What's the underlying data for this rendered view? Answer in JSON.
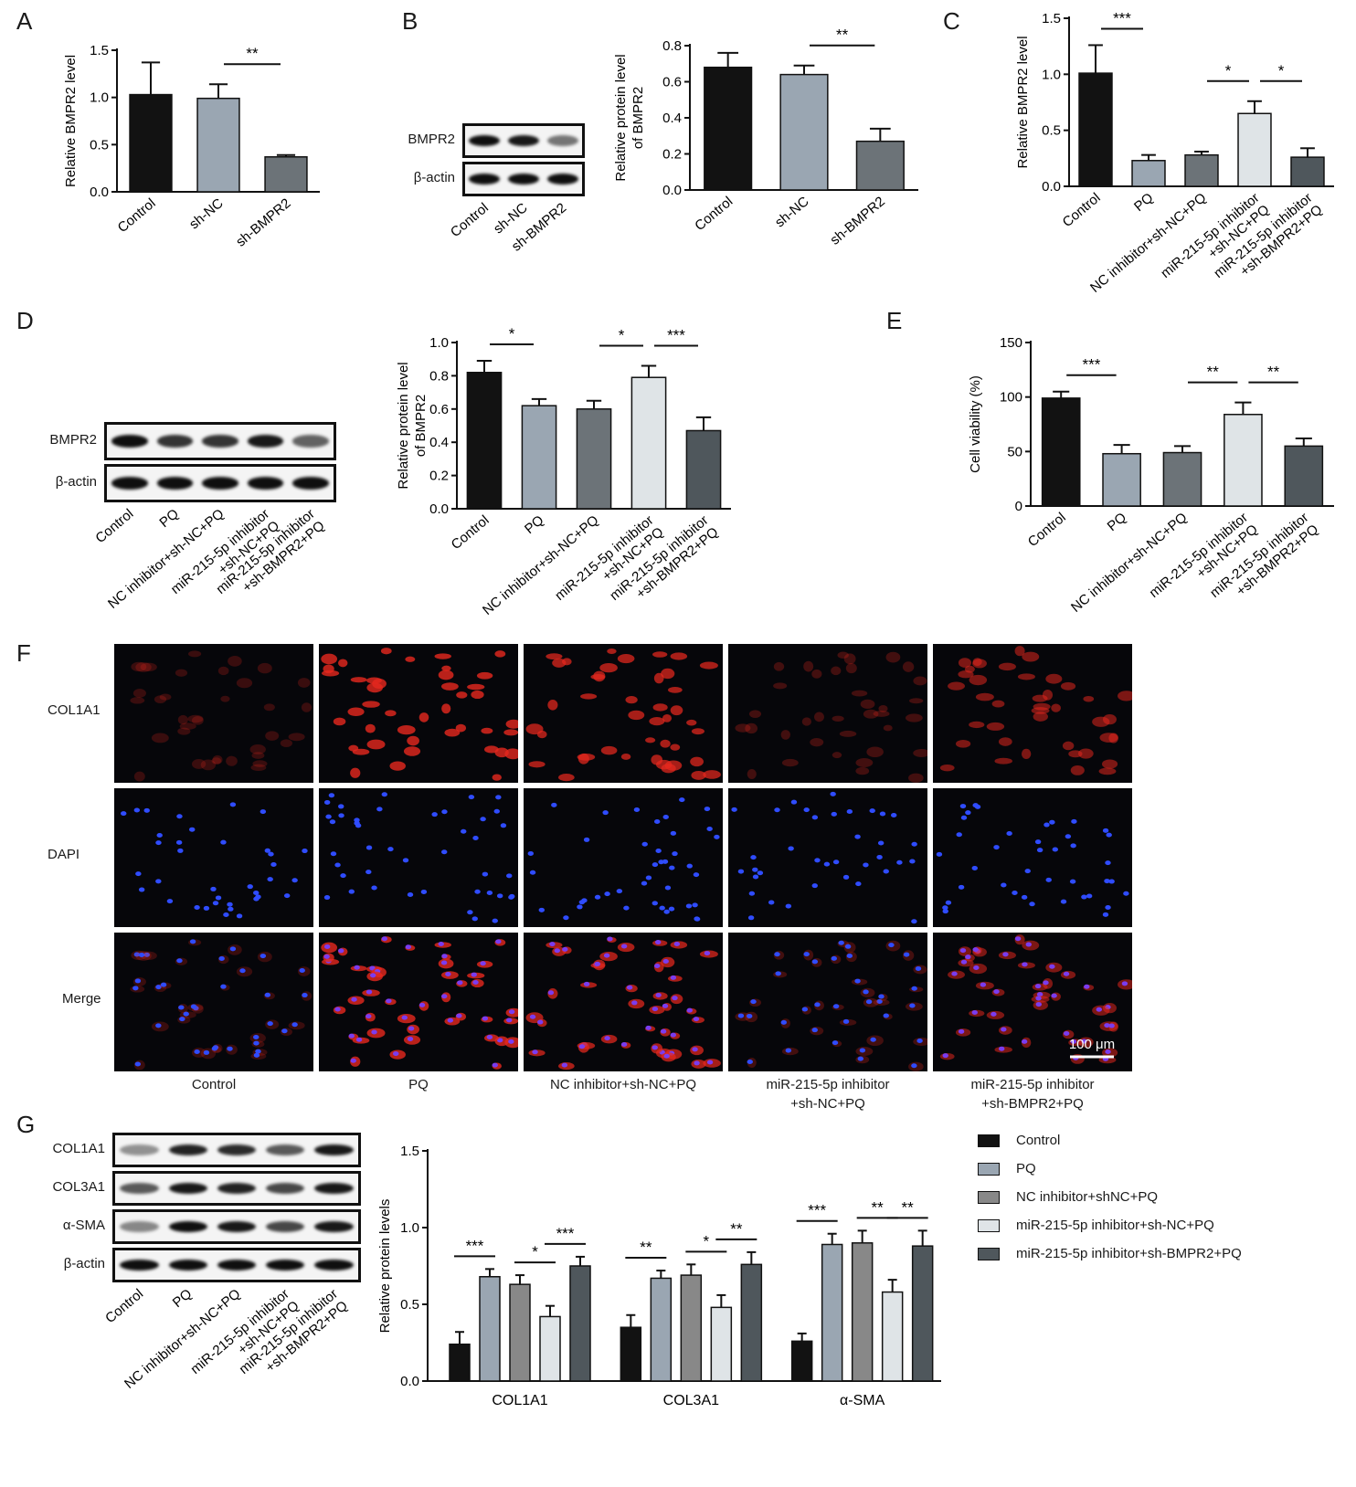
{
  "panels": {
    "A": "A",
    "B": "B",
    "C": "C",
    "D": "D",
    "E": "E",
    "F": "F",
    "G": "G"
  },
  "colors": {
    "Control": "#121212",
    "sh-NC": "#9aa6b2",
    "sh-BMPR2": "#6c7378",
    "PQ": "#9aa6b2",
    "NC inhibitor+sh-NC+PQ": "#6c7378",
    "miR-215-5p inhibitor+sh-NC+PQ": "#dfe4e7",
    "miR-215-5p inhibitor+sh-BMPR2+PQ": "#4f575c",
    "axis": "#111111"
  },
  "chart_data": [
    {
      "id": "A",
      "type": "bar",
      "ylabel": "Relative BMPR2 level",
      "categories": [
        "Control",
        "sh-NC",
        "sh-BMPR2"
      ],
      "values": [
        1.03,
        0.99,
        0.37
      ],
      "errors": [
        0.34,
        0.15,
        0.02
      ],
      "ylim": [
        0,
        1.5
      ],
      "yticks": [
        "0.0",
        "0.5",
        "1.0",
        "1.5"
      ],
      "significance": [
        {
          "from": 1,
          "to": 2,
          "label": "**"
        }
      ]
    },
    {
      "id": "B",
      "type": "bar",
      "ylabel": "Relative protein level of BMPR2",
      "categories": [
        "Control",
        "sh-NC",
        "sh-BMPR2"
      ],
      "values": [
        0.68,
        0.64,
        0.27
      ],
      "errors": [
        0.08,
        0.05,
        0.07
      ],
      "ylim": [
        0,
        0.8
      ],
      "yticks": [
        "0.0",
        "0.2",
        "0.4",
        "0.6",
        "0.8"
      ],
      "significance": [
        {
          "from": 1,
          "to": 2,
          "label": "**"
        }
      ]
    },
    {
      "id": "C",
      "type": "bar",
      "ylabel": "Relative BMPR2 level",
      "categories": [
        "Control",
        "PQ",
        "NC inhibitor+sh-NC+PQ",
        "miR-215-5p inhibitor +sh-NC+PQ",
        "miR-215-5p inhibitor +sh-BMPR2+PQ"
      ],
      "values": [
        1.01,
        0.23,
        0.28,
        0.65,
        0.26
      ],
      "errors": [
        0.25,
        0.05,
        0.03,
        0.11,
        0.08
      ],
      "ylim": [
        0,
        1.5
      ],
      "yticks": [
        "0.0",
        "0.5",
        "1.0",
        "1.5"
      ],
      "significance": [
        {
          "from": 0,
          "to": 1,
          "label": "***"
        },
        {
          "from": 2,
          "to": 3,
          "label": "*"
        },
        {
          "from": 3,
          "to": 4,
          "label": "*"
        }
      ]
    },
    {
      "id": "D",
      "type": "bar",
      "ylabel": "Relative protein level of BMPR2",
      "categories": [
        "Control",
        "PQ",
        "NC inhibitor+sh-NC+PQ",
        "miR-215-5p inhibitor +sh-NC+PQ",
        "miR-215-5p inhibitor +sh-BMPR2+PQ"
      ],
      "values": [
        0.82,
        0.62,
        0.6,
        0.79,
        0.47
      ],
      "errors": [
        0.07,
        0.04,
        0.05,
        0.07,
        0.08
      ],
      "ylim": [
        0,
        1.0
      ],
      "yticks": [
        "0.0",
        "0.2",
        "0.4",
        "0.6",
        "0.8",
        "1.0"
      ],
      "significance": [
        {
          "from": 0,
          "to": 1,
          "label": "*"
        },
        {
          "from": 2,
          "to": 3,
          "label": "*"
        },
        {
          "from": 3,
          "to": 4,
          "label": "***"
        }
      ]
    },
    {
      "id": "E",
      "type": "bar",
      "ylabel": "Cell viability (%)",
      "categories": [
        "Control",
        "PQ",
        "NC inhibitor+sh-NC+PQ",
        "miR-215-5p inhibitor +sh-NC+PQ",
        "miR-215-5p inhibitor +sh-BMPR2+PQ"
      ],
      "values": [
        99,
        48,
        49,
        84,
        55
      ],
      "errors": [
        6,
        8,
        6,
        11,
        7
      ],
      "ylim": [
        0,
        150
      ],
      "yticks": [
        "0",
        "50",
        "100",
        "150"
      ],
      "significance": [
        {
          "from": 0,
          "to": 1,
          "label": "***"
        },
        {
          "from": 2,
          "to": 3,
          "label": "**"
        },
        {
          "from": 3,
          "to": 4,
          "label": "**"
        }
      ]
    },
    {
      "id": "G",
      "type": "bar",
      "ylabel": "Relative protein levels",
      "categories": [
        "COL1A1",
        "COL3A1",
        "α-SMA"
      ],
      "ylim": [
        0,
        1.5
      ],
      "yticks": [
        "0.0",
        "0.5",
        "1.0",
        "1.5"
      ],
      "series": [
        {
          "name": "Control",
          "values": [
            0.24,
            0.35,
            0.26
          ],
          "errors": [
            0.08,
            0.08,
            0.05
          ]
        },
        {
          "name": "PQ",
          "values": [
            0.68,
            0.67,
            0.89
          ],
          "errors": [
            0.05,
            0.05,
            0.07
          ]
        },
        {
          "name": "NC inhibitor+shNC+PQ",
          "values": [
            0.63,
            0.69,
            0.9
          ],
          "errors": [
            0.06,
            0.07,
            0.08
          ]
        },
        {
          "name": "miR-215-5p inhibitor+sh-NC+PQ",
          "values": [
            0.42,
            0.48,
            0.58
          ],
          "errors": [
            0.07,
            0.08,
            0.08
          ]
        },
        {
          "name": "miR-215-5p inhibitor+sh-BMPR2+PQ",
          "values": [
            0.75,
            0.76,
            0.88
          ],
          "errors": [
            0.06,
            0.08,
            0.1
          ]
        }
      ],
      "significance": [
        [
          {
            "from": 0,
            "to": 1,
            "label": "***"
          },
          {
            "from": 2,
            "to": 3,
            "label": "*"
          },
          {
            "from": 3,
            "to": 4,
            "label": "***"
          }
        ],
        [
          {
            "from": 0,
            "to": 1,
            "label": "**"
          },
          {
            "from": 2,
            "to": 3,
            "label": "*"
          },
          {
            "from": 3,
            "to": 4,
            "label": "**"
          }
        ],
        [
          {
            "from": 0,
            "to": 1,
            "label": "***"
          },
          {
            "from": 2,
            "to": 3,
            "label": "**"
          },
          {
            "from": 3,
            "to": 4,
            "label": "**"
          }
        ]
      ]
    }
  ],
  "blots": {
    "B": {
      "rows": [
        "BMPR2",
        "β-actin"
      ],
      "lanes": [
        "Control",
        "sh-NC",
        "sh-BMPR2"
      ],
      "intensity": [
        [
          1.0,
          0.95,
          0.45
        ],
        [
          1.0,
          1.0,
          1.0
        ]
      ]
    },
    "D": {
      "rows": [
        "BMPR2",
        "β-actin"
      ],
      "lanes": [
        "Control",
        "PQ",
        "NC inhibitor+sh-NC+PQ",
        "miR-215-5p inhibitor +sh-NC+PQ",
        "miR-215-5p inhibitor +sh-BMPR2+PQ"
      ],
      "intensity": [
        [
          1.0,
          0.8,
          0.8,
          0.95,
          0.55
        ],
        [
          1.0,
          1.0,
          1.0,
          1.0,
          1.0
        ]
      ]
    },
    "G": {
      "rows": [
        "COL1A1",
        "COL3A1",
        "α-SMA",
        "β-actin"
      ],
      "lanes": [
        "Control",
        "PQ",
        "NC inhibitor+sh-NC+PQ",
        "miR-215-5p inhibitor +sh-NC+PQ",
        "miR-215-5p inhibitor +sh-BMPR2+PQ"
      ],
      "intensity": [
        [
          0.3,
          0.9,
          0.85,
          0.6,
          0.95
        ],
        [
          0.6,
          0.95,
          0.9,
          0.7,
          0.95
        ],
        [
          0.35,
          1.0,
          0.95,
          0.7,
          0.95
        ],
        [
          1.0,
          1.0,
          1.0,
          1.0,
          1.0
        ]
      ]
    }
  },
  "images": {
    "rows": [
      "COL1A1",
      "DAPI",
      "Merge"
    ],
    "columns": [
      "Control",
      "PQ",
      "NC inhibitor+sh-NC+PQ",
      "miR-215-5p inhibitor\n+sh-NC+PQ",
      "miR-215-5p inhibitor\n+sh-BMPR2+PQ"
    ],
    "col1a1_intensity": [
      0.15,
      0.9,
      0.8,
      0.2,
      0.55
    ],
    "scale_bar": "100 μm"
  },
  "legend": [
    "Control",
    "PQ",
    "NC inhibitor+shNC+PQ",
    "miR-215-5p inhibitor+sh-NC+PQ",
    "miR-215-5p inhibitor+sh-BMPR2+PQ"
  ]
}
